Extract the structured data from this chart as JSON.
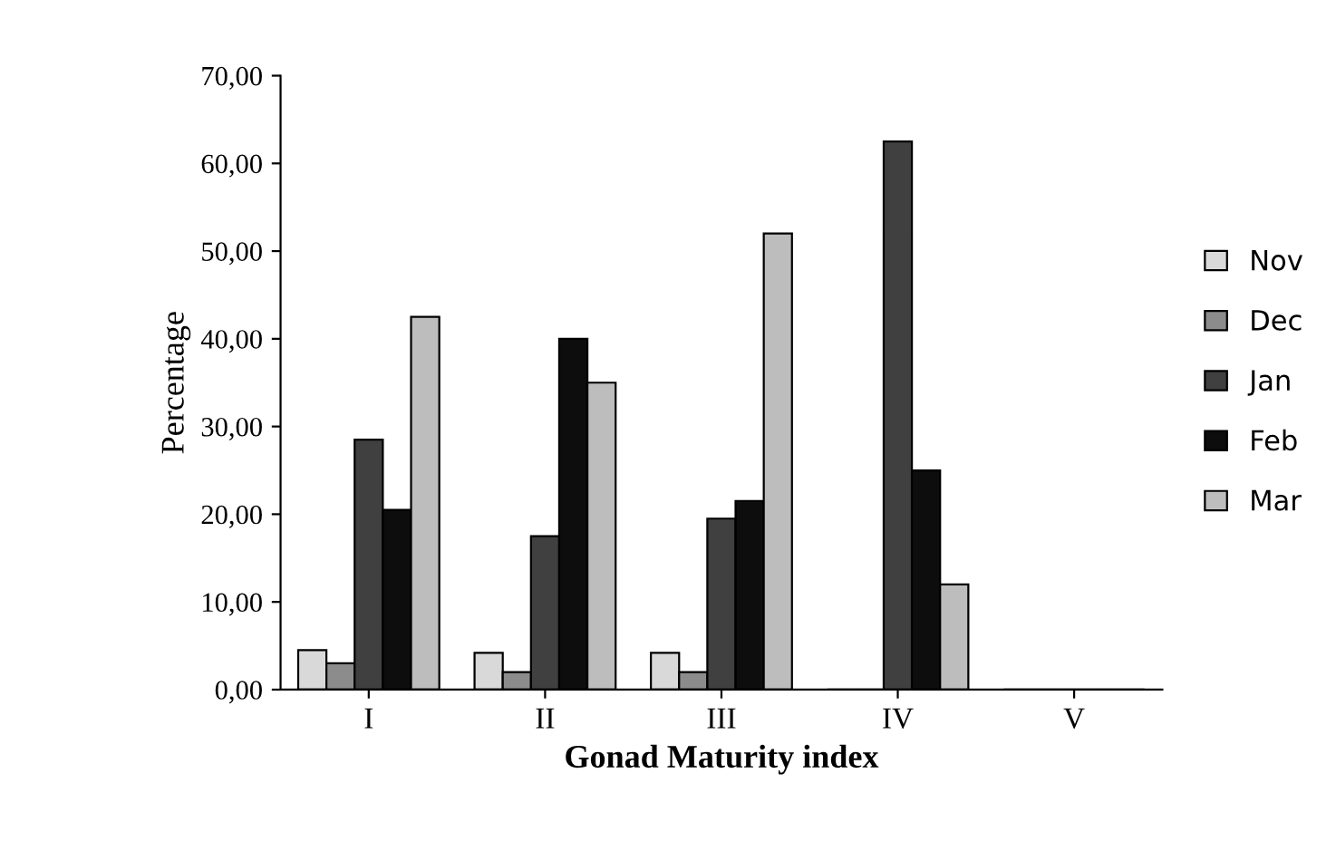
{
  "chart_data": {
    "type": "bar",
    "xlabel": "Gonad Maturity index",
    "ylabel": "Percentage",
    "categories": [
      "I",
      "II",
      "III",
      "IV",
      "V"
    ],
    "series": [
      {
        "name": "Nov",
        "color": "#d9d9d9",
        "values": [
          4.5,
          4.2,
          4.2,
          0,
          0
        ]
      },
      {
        "name": "Dec",
        "color": "#8c8c8c",
        "values": [
          3,
          2,
          2,
          0,
          0
        ]
      },
      {
        "name": "Jan",
        "color": "#404040",
        "values": [
          28.5,
          17.5,
          19.5,
          62.5,
          0
        ]
      },
      {
        "name": "Feb",
        "color": "#0d0d0d",
        "values": [
          20.5,
          40,
          21.5,
          25,
          0
        ]
      },
      {
        "name": "Mar",
        "color": "#bdbdbd",
        "values": [
          42.5,
          35,
          52,
          12,
          0
        ]
      }
    ],
    "ylim": [
      0,
      70
    ],
    "yticks": [
      {
        "value": 0,
        "label": "0,00"
      },
      {
        "value": 10,
        "label": "10,00"
      },
      {
        "value": 20,
        "label": "20,00"
      },
      {
        "value": 30,
        "label": "30,00"
      },
      {
        "value": 40,
        "label": "40,00"
      },
      {
        "value": 50,
        "label": "50,00"
      },
      {
        "value": 60,
        "label": "60,00"
      },
      {
        "value": 70,
        "label": "70,00"
      }
    ],
    "grid": false,
    "legend": "right"
  }
}
